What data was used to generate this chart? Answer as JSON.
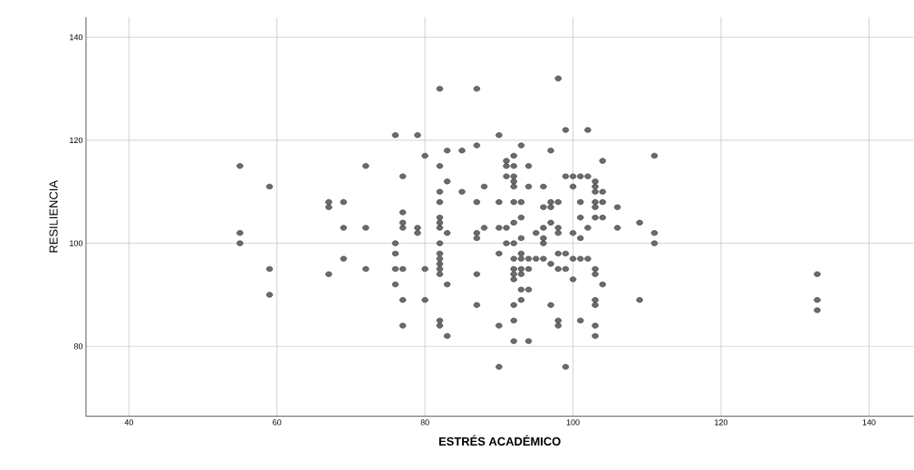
{
  "chart_data": {
    "type": "scatter",
    "xlabel": "ESTRÉS ACADÉMICO",
    "ylabel": "RESILIENCIA",
    "xlim": [
      34.2,
      146
    ],
    "ylim": [
      66.4,
      143.9
    ],
    "xticks": [
      40,
      60,
      80,
      100,
      120,
      140
    ],
    "yticks": [
      80,
      100,
      120,
      140
    ],
    "grid": true,
    "marker": "circle",
    "series": [
      {
        "color": "#6b6b6b",
        "x": [
          82,
          76,
          79,
          80,
          83,
          55,
          72,
          82,
          77,
          83,
          59,
          82,
          82,
          67,
          67,
          69,
          77,
          77,
          77,
          79,
          79,
          82,
          82,
          82,
          83,
          55,
          55,
          69,
          72,
          76,
          82,
          76,
          69,
          59,
          72,
          76,
          77,
          80,
          82,
          82,
          82,
          82,
          82,
          67,
          76,
          83,
          59,
          77,
          80,
          77,
          82,
          82,
          83,
          98,
          87,
          99,
          102,
          90,
          93,
          87,
          85,
          97,
          111,
          92,
          104,
          91,
          91,
          92,
          94,
          91,
          92,
          92,
          92,
          99,
          100,
          101,
          102,
          103,
          103,
          103,
          104,
          88,
          94,
          96,
          100,
          85,
          87,
          90,
          92,
          93,
          97,
          98,
          96,
          97,
          101,
          103,
          104,
          103,
          106,
          93,
          103,
          104,
          101,
          92,
          97,
          109,
          88,
          90,
          91,
          96,
          98,
          102,
          106,
          87,
          87,
          95,
          98,
          100,
          111,
          93,
          96,
          96,
          101,
          91,
          92,
          111,
          90,
          93,
          98,
          99,
          92,
          93,
          94,
          95,
          96,
          100,
          101,
          102,
          97,
          92,
          93,
          94,
          98,
          99,
          103,
          103,
          87,
          92,
          93,
          92,
          100,
          104,
          93,
          94,
          87,
          92,
          93,
          97,
          103,
          103,
          109,
          90,
          92,
          98,
          98,
          101,
          103,
          103,
          92,
          94,
          90,
          99,
          133,
          133,
          133
        ],
        "values": [
          130,
          121,
          121,
          117,
          118,
          115,
          115,
          115,
          113,
          112,
          111,
          110,
          108,
          108,
          107,
          108,
          106,
          104,
          103,
          103,
          102,
          105,
          104,
          103,
          102,
          102,
          100,
          103,
          103,
          100,
          100,
          98,
          97,
          95,
          95,
          95,
          95,
          95,
          98,
          97,
          96,
          95,
          94,
          94,
          92,
          92,
          90,
          89,
          89,
          84,
          85,
          84,
          82,
          132,
          130,
          122,
          122,
          121,
          119,
          119,
          118,
          118,
          117,
          117,
          116,
          116,
          115,
          115,
          115,
          113,
          113,
          112,
          111,
          113,
          113,
          113,
          113,
          112,
          111,
          110,
          110,
          111,
          111,
          111,
          111,
          110,
          108,
          108,
          108,
          108,
          108,
          108,
          107,
          107,
          108,
          108,
          108,
          107,
          107,
          105,
          105,
          105,
          105,
          104,
          104,
          104,
          103,
          103,
          103,
          103,
          103,
          103,
          103,
          102,
          101,
          102,
          102,
          102,
          102,
          101,
          101,
          100,
          101,
          100,
          100,
          100,
          98,
          98,
          98,
          98,
          97,
          97,
          97,
          97,
          97,
          97,
          97,
          97,
          96,
          95,
          95,
          95,
          95,
          95,
          95,
          94,
          94,
          94,
          94,
          93,
          93,
          92,
          91,
          91,
          88,
          88,
          89,
          88,
          89,
          88,
          89,
          84,
          85,
          85,
          84,
          85,
          84,
          82,
          81,
          81,
          76,
          76,
          94,
          89,
          87
        ]
      }
    ]
  }
}
